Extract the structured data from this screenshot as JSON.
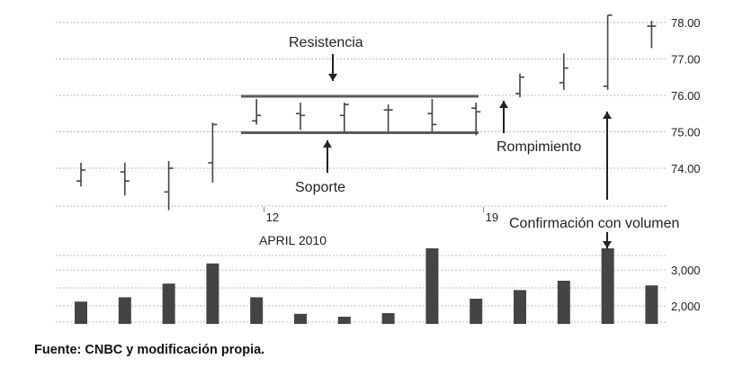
{
  "chart_data": [
    {
      "type": "ohlc",
      "price_ticks": [
        "74.00",
        "75.00",
        "76.00",
        "77.00",
        "78.00"
      ],
      "ylim": [
        73.0,
        78.2
      ],
      "date_labels": [
        {
          "index": 4.5,
          "text": "12"
        },
        {
          "index": 9.5,
          "text": "19"
        }
      ],
      "month_label": "APRIL 2010",
      "bars": [
        {
          "open": 73.65,
          "high": 74.15,
          "low": 73.5,
          "close": 73.95
        },
        {
          "open": 73.9,
          "high": 74.15,
          "low": 73.25,
          "close": 73.65
        },
        {
          "open": 73.35,
          "high": 74.2,
          "low": 72.85,
          "close": 74.0
        },
        {
          "open": 74.15,
          "high": 75.25,
          "low": 73.6,
          "close": 75.2
        },
        {
          "open": 75.3,
          "high": 75.9,
          "low": 75.2,
          "close": 75.45
        },
        {
          "open": 75.5,
          "high": 75.8,
          "low": 75.05,
          "close": 75.45
        },
        {
          "open": 75.45,
          "high": 75.8,
          "low": 75.0,
          "close": 75.75
        },
        {
          "open": 75.6,
          "high": 75.75,
          "low": 75.0,
          "close": 75.6
        },
        {
          "open": 75.5,
          "high": 75.9,
          "low": 75.0,
          "close": 75.2
        },
        {
          "open": 75.65,
          "high": 75.8,
          "low": 74.9,
          "close": 75.55
        },
        {
          "open": 76.05,
          "high": 76.6,
          "low": 75.95,
          "close": 76.5
        },
        {
          "open": 76.35,
          "high": 77.15,
          "low": 76.15,
          "close": 76.75
        },
        {
          "open": 76.25,
          "high": 78.2,
          "low": 76.15,
          "close": 78.2
        },
        {
          "open": 77.9,
          "high": 78.05,
          "low": 77.3,
          "close": 77.9
        }
      ],
      "support": 75.0,
      "resistance": 76.0,
      "annotations": {
        "resistance": "Resistencia",
        "support": "Soporte",
        "breakout": "Rompimiento",
        "volume_confirmation": "Confirmación con volumen"
      }
    },
    {
      "type": "bar",
      "y_ticks": [
        "2,000",
        "3,000"
      ],
      "ylim": [
        1500,
        3600
      ],
      "values": [
        2120,
        2240,
        2620,
        3180,
        2240,
        1780,
        1700,
        1800,
        3600,
        2200,
        2440,
        2700,
        3600,
        2570
      ]
    }
  ],
  "source": "Fuente: CNBC y modificación propia.",
  "colors": {
    "bar": "#444444",
    "ohlc": "#444444",
    "band": "#5a5a5a",
    "grid": "#bbbbbb",
    "arrow": "#222222"
  }
}
